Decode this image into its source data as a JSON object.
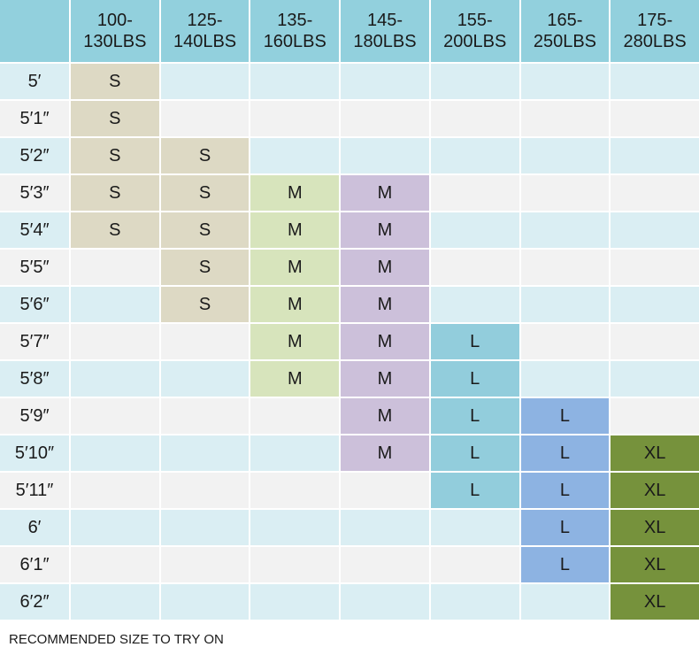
{
  "table": {
    "header": [
      "100-130LBS",
      "125-140LBS",
      "135-160LBS",
      "145-180LBS",
      "155-200LBS",
      "165-250LBS",
      "175-280LBS"
    ],
    "rows": [
      {
        "height": "5′",
        "cells": [
          "S",
          null,
          null,
          null,
          null,
          null,
          null
        ]
      },
      {
        "height": "5′1″",
        "cells": [
          "S",
          null,
          null,
          null,
          null,
          null,
          null
        ]
      },
      {
        "height": "5′2″",
        "cells": [
          "S",
          "S",
          null,
          null,
          null,
          null,
          null
        ]
      },
      {
        "height": "5′3″",
        "cells": [
          "S",
          "S",
          "M",
          "M",
          null,
          null,
          null
        ]
      },
      {
        "height": "5′4″",
        "cells": [
          "S",
          "S",
          "M",
          "M",
          null,
          null,
          null
        ]
      },
      {
        "height": "5′5″",
        "cells": [
          null,
          "S",
          "M",
          "M",
          null,
          null,
          null
        ]
      },
      {
        "height": "5′6″",
        "cells": [
          null,
          "S",
          "M",
          "M",
          null,
          null,
          null
        ]
      },
      {
        "height": "5′7″",
        "cells": [
          null,
          null,
          "M",
          "M",
          "L",
          null,
          null
        ]
      },
      {
        "height": "5′8″",
        "cells": [
          null,
          null,
          "M",
          "M",
          "L",
          null,
          null
        ]
      },
      {
        "height": "5′9″",
        "cells": [
          null,
          null,
          null,
          "M",
          "L",
          "L",
          null
        ]
      },
      {
        "height": "5′10″",
        "cells": [
          null,
          null,
          null,
          "M",
          "L",
          "L",
          "XL"
        ]
      },
      {
        "height": "5′11″",
        "cells": [
          null,
          null,
          null,
          null,
          "L",
          "L",
          "XL"
        ]
      },
      {
        "height": "6′",
        "cells": [
          null,
          null,
          null,
          null,
          null,
          "L",
          "XL"
        ]
      },
      {
        "height": "6′1″",
        "cells": [
          null,
          null,
          null,
          null,
          null,
          "L",
          "XL"
        ]
      },
      {
        "height": "6′2″",
        "cells": [
          null,
          null,
          null,
          null,
          null,
          null,
          "XL"
        ]
      }
    ]
  },
  "footer": "RECOMMENDED SIZE TO TRY ON"
}
